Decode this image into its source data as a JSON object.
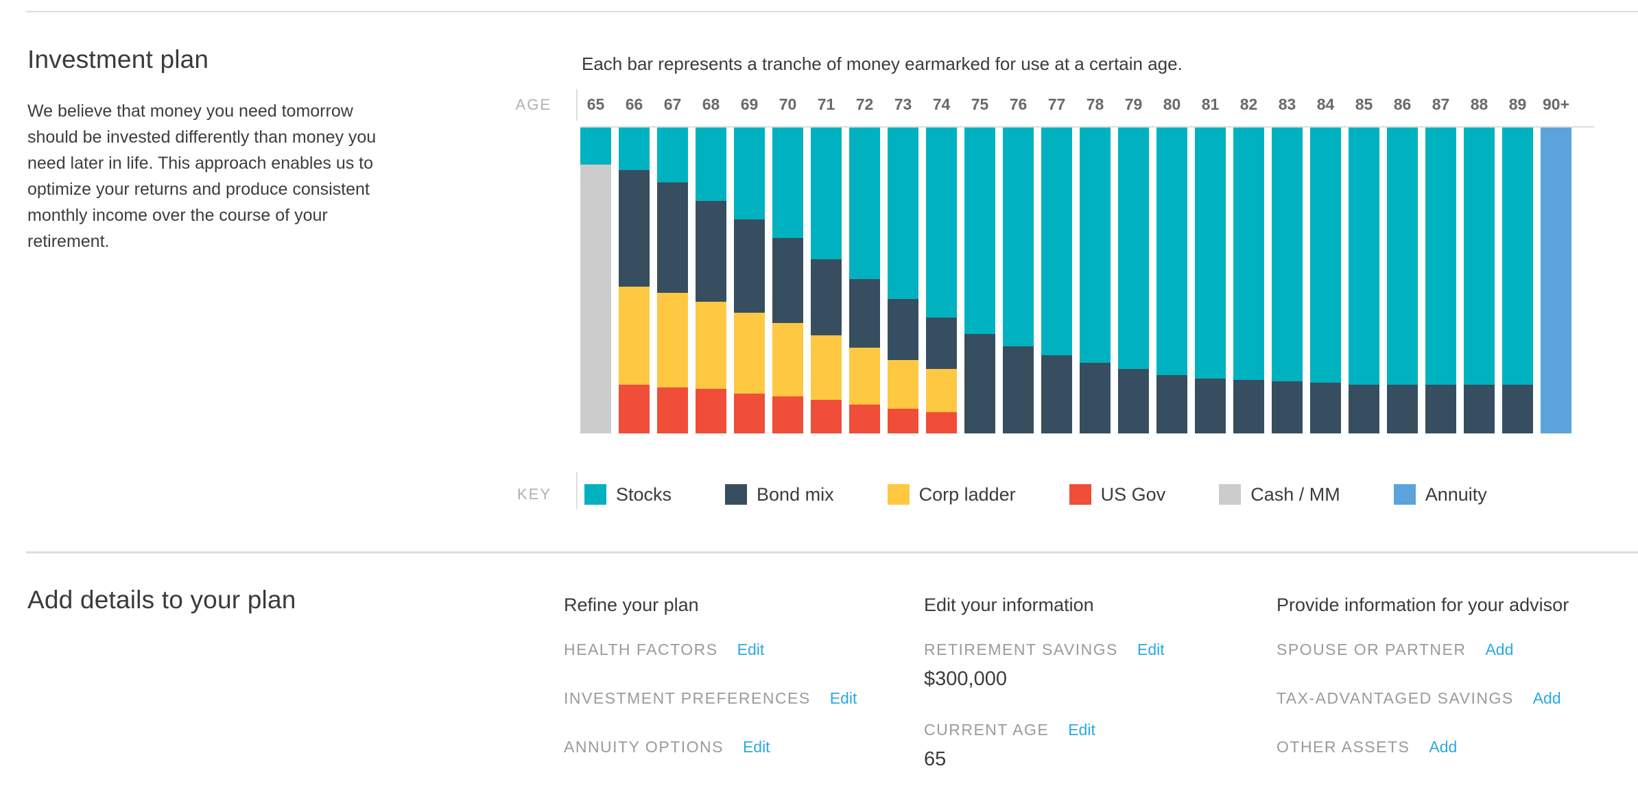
{
  "page": {
    "investment_plan": {
      "title": "Investment plan",
      "description": "We believe that money you need tomorrow should be invested differently than money you need later in life. This approach enables us to optimize your returns and produce consistent monthly income over the course of your retirement."
    },
    "chart": {
      "subtitle": "Each bar represents a tranche of money earmarked for use at a certain age.",
      "axis_label": "AGE",
      "key_label": "KEY"
    },
    "add_details": {
      "title": "Add details to your plan",
      "columns": [
        {
          "title": "Refine your plan",
          "items": [
            {
              "label": "HEALTH FACTORS",
              "action": "Edit"
            },
            {
              "label": "INVESTMENT PREFERENCES",
              "action": "Edit"
            },
            {
              "label": "ANNUITY OPTIONS",
              "action": "Edit"
            }
          ]
        },
        {
          "title": "Edit your information",
          "items": [
            {
              "label": "RETIREMENT SAVINGS",
              "action": "Edit",
              "value": "$300,000"
            },
            {
              "label": "CURRENT AGE",
              "action": "Edit",
              "value": "65"
            }
          ]
        },
        {
          "title": "Provide information for your advisor",
          "items": [
            {
              "label": "SPOUSE OR PARTNER",
              "action": "Add"
            },
            {
              "label": "TAX-ADVANTAGED SAVINGS",
              "action": "Add"
            },
            {
              "label": "OTHER ASSETS",
              "action": "Add"
            }
          ]
        }
      ]
    }
  },
  "colors": {
    "stocks": "#00b2bf",
    "bond_mix": "#374e61",
    "corp_ladder": "#fec843",
    "us_gov": "#f04e38",
    "cash_mm": "#cccccc",
    "annuity": "#5ca3db",
    "link_blue": "#29a9e2",
    "divider_gray": "#dddddd",
    "muted_label": "#9b9b9b",
    "tick_gray": "#696969"
  },
  "chart_data": {
    "type": "bar",
    "stacked": true,
    "values_unit": "percent_of_tranche",
    "title": "",
    "xlabel": "AGE",
    "ylabel": "",
    "ylim": [
      0,
      100
    ],
    "grid": false,
    "legend_position": "bottom",
    "categories": [
      "65",
      "66",
      "67",
      "68",
      "69",
      "70",
      "71",
      "72",
      "73",
      "74",
      "75",
      "76",
      "77",
      "78",
      "79",
      "80",
      "81",
      "82",
      "83",
      "84",
      "85",
      "86",
      "87",
      "88",
      "89",
      "90+"
    ],
    "series": [
      {
        "key": "stocks",
        "name": "Stocks",
        "color": "#00b2bf",
        "values": [
          12,
          14,
          18,
          24,
          30,
          36,
          43,
          49.5,
          56,
          62,
          67.5,
          71.5,
          74.5,
          77,
          79,
          81,
          82,
          82.5,
          83,
          83.5,
          84,
          84,
          84,
          84,
          84,
          0
        ]
      },
      {
        "key": "bond-mix",
        "name": "Bond mix",
        "color": "#374e61",
        "values": [
          0,
          38,
          36,
          33,
          30.5,
          28,
          25,
          22.5,
          20,
          17,
          32.5,
          28.5,
          25.5,
          23,
          21,
          19,
          18,
          17.5,
          17,
          16.5,
          16,
          16,
          16,
          16,
          16,
          0
        ]
      },
      {
        "key": "corp-ladder",
        "name": "Corp ladder",
        "color": "#fec843",
        "values": [
          0,
          32,
          31,
          28.5,
          26.5,
          24,
          21,
          18.5,
          16,
          14,
          0,
          0,
          0,
          0,
          0,
          0,
          0,
          0,
          0,
          0,
          0,
          0,
          0,
          0,
          0,
          0
        ]
      },
      {
        "key": "us-gov",
        "name": "US Gov",
        "color": "#f04e38",
        "values": [
          0,
          16,
          15,
          14.5,
          13,
          12,
          11,
          9.5,
          8,
          7,
          0,
          0,
          0,
          0,
          0,
          0,
          0,
          0,
          0,
          0,
          0,
          0,
          0,
          0,
          0,
          0
        ]
      },
      {
        "key": "cash-mm",
        "name": "Cash / MM",
        "color": "#cccccc",
        "values": [
          88,
          0,
          0,
          0,
          0,
          0,
          0,
          0,
          0,
          0,
          0,
          0,
          0,
          0,
          0,
          0,
          0,
          0,
          0,
          0,
          0,
          0,
          0,
          0,
          0,
          0
        ]
      },
      {
        "key": "annuity",
        "name": "Annuity",
        "color": "#5ca3db",
        "values": [
          0,
          0,
          0,
          0,
          0,
          0,
          0,
          0,
          0,
          0,
          0,
          0,
          0,
          0,
          0,
          0,
          0,
          0,
          0,
          0,
          0,
          0,
          0,
          0,
          0,
          100
        ]
      }
    ]
  }
}
